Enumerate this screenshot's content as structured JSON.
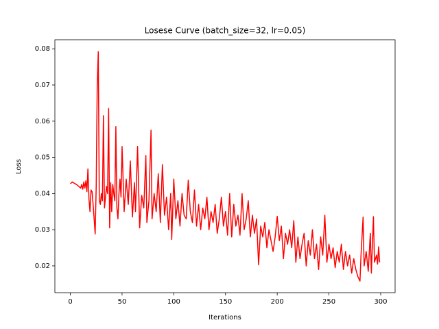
{
  "chart_data": {
    "type": "line",
    "title": "Losese Curve (batch_size=32, lr=0.05)",
    "x_label": "Iterations",
    "y_label": "Loss",
    "xlim": [
      -14.95,
      313.95
    ],
    "ylim": [
      0.0126,
      0.0825
    ],
    "xticks": [
      0,
      50,
      100,
      150,
      200,
      250,
      300
    ],
    "yticks": [
      0.02,
      0.03,
      0.04,
      0.05,
      0.06,
      0.07,
      0.08
    ],
    "series": [
      {
        "color": "#ff0000",
        "x": [
          0,
          2,
          4,
          6,
          8,
          10,
          11,
          12,
          13,
          14,
          15,
          16,
          17,
          18,
          19,
          20,
          21,
          22,
          23,
          24,
          25,
          26,
          27,
          28,
          29,
          30,
          31,
          32,
          33,
          34,
          35,
          36,
          37,
          38,
          39,
          40,
          41,
          42,
          43,
          44,
          45,
          46,
          47,
          48,
          49,
          50,
          52,
          54,
          56,
          58,
          60,
          62,
          63,
          65,
          67,
          69,
          71,
          73,
          74,
          76,
          78,
          79,
          81,
          83,
          85,
          87,
          89,
          91,
          93,
          95,
          97,
          98,
          100,
          102,
          104,
          106,
          108,
          110,
          112,
          114,
          116,
          118,
          120,
          122,
          124,
          126,
          128,
          130,
          132,
          134,
          136,
          138,
          140,
          142,
          144,
          146,
          148,
          150,
          152,
          154,
          156,
          158,
          160,
          162,
          164,
          166,
          168,
          170,
          172,
          174,
          176,
          178,
          180,
          182,
          184,
          186,
          188,
          190,
          192,
          194,
          196,
          198,
          200,
          202,
          204,
          206,
          208,
          210,
          212,
          214,
          216,
          218,
          220,
          222,
          224,
          226,
          228,
          230,
          232,
          234,
          236,
          238,
          240,
          242,
          244,
          246,
          248,
          250,
          252,
          254,
          256,
          258,
          260,
          262,
          264,
          266,
          268,
          270,
          272,
          274,
          276,
          278,
          280,
          281,
          283,
          284,
          286,
          288,
          290,
          291,
          293,
          294,
          296,
          297,
          298,
          299
        ],
        "values": [
          0.0427,
          0.0432,
          0.0428,
          0.0425,
          0.042,
          0.0415,
          0.0425,
          0.0412,
          0.0432,
          0.0415,
          0.0435,
          0.0405,
          0.0468,
          0.0385,
          0.035,
          0.041,
          0.0405,
          0.037,
          0.033,
          0.0288,
          0.042,
          0.07,
          0.0792,
          0.038,
          0.037,
          0.04,
          0.038,
          0.0615,
          0.036,
          0.039,
          0.042,
          0.04,
          0.0635,
          0.0305,
          0.043,
          0.035,
          0.0425,
          0.04,
          0.038,
          0.0585,
          0.036,
          0.033,
          0.04,
          0.044,
          0.039,
          0.053,
          0.035,
          0.044,
          0.037,
          0.049,
          0.0335,
          0.043,
          0.035,
          0.053,
          0.0305,
          0.0395,
          0.036,
          0.0505,
          0.032,
          0.038,
          0.0575,
          0.033,
          0.04,
          0.035,
          0.0455,
          0.032,
          0.048,
          0.034,
          0.039,
          0.03,
          0.04,
          0.0273,
          0.044,
          0.033,
          0.038,
          0.031,
          0.04,
          0.034,
          0.033,
          0.0437,
          0.035,
          0.032,
          0.041,
          0.031,
          0.037,
          0.03,
          0.036,
          0.033,
          0.039,
          0.03,
          0.035,
          0.032,
          0.037,
          0.029,
          0.033,
          0.039,
          0.031,
          0.035,
          0.0285,
          0.04,
          0.028,
          0.037,
          0.031,
          0.034,
          0.0285,
          0.04,
          0.03,
          0.033,
          0.038,
          0.028,
          0.034,
          0.029,
          0.033,
          0.0203,
          0.031,
          0.028,
          0.032,
          0.025,
          0.03,
          0.027,
          0.024,
          0.028,
          0.0337,
          0.027,
          0.031,
          0.022,
          0.029,
          0.026,
          0.03,
          0.025,
          0.0325,
          0.021,
          0.028,
          0.022,
          0.026,
          0.029,
          0.02,
          0.027,
          0.023,
          0.03,
          0.022,
          0.026,
          0.019,
          0.028,
          0.023,
          0.034,
          0.021,
          0.026,
          0.022,
          0.025,
          0.0195,
          0.024,
          0.021,
          0.026,
          0.019,
          0.024,
          0.02,
          0.023,
          0.018,
          0.022,
          0.019,
          0.017,
          0.0158,
          0.023,
          0.0335,
          0.02,
          0.024,
          0.0185,
          0.029,
          0.018,
          0.0336,
          0.021,
          0.023,
          0.0205,
          0.0253,
          0.021
        ]
      }
    ]
  }
}
